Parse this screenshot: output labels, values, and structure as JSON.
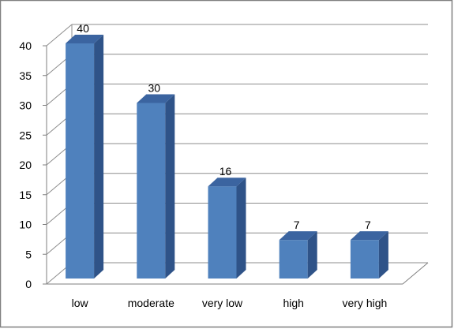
{
  "chart_data": {
    "type": "bar",
    "style": "3d-column",
    "categories": [
      "low",
      "moderate",
      "very low",
      "high",
      "very high"
    ],
    "values": [
      40,
      30,
      16,
      7,
      7
    ],
    "data_labels": [
      "40",
      "30",
      "16",
      "7",
      "7"
    ],
    "ylim": [
      0,
      40
    ],
    "yticks": [
      "0",
      "5",
      "10",
      "15",
      "20",
      "25",
      "30",
      "35",
      "40"
    ],
    "grid": true,
    "legend": "none",
    "colors": {
      "bar_front": "#4f81bd",
      "bar_side": "#2f5388",
      "bar_top": "#3b64a0",
      "grid": "#8c8c8c",
      "frame": "#7f7f7f"
    }
  }
}
